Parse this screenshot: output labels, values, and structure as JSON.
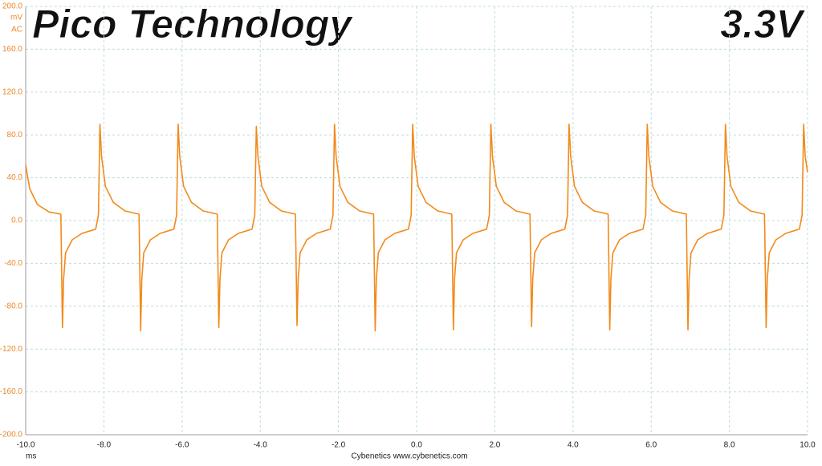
{
  "chart_data": {
    "type": "line",
    "title": "Pico Technology",
    "subtitle": "3.3V",
    "y_unit": "mV",
    "y_coupling": "AC",
    "x_unit": "ms",
    "footer": "Cybenetics  www.cybenetics.com",
    "grid": true,
    "xlim": [
      -10,
      10
    ],
    "ylim": [
      -200,
      200
    ],
    "xticks": [
      {
        "value": -10,
        "label": "-10.0"
      },
      {
        "value": -8,
        "label": "-8.0"
      },
      {
        "value": -6,
        "label": "-6.0"
      },
      {
        "value": -4,
        "label": "-4.0"
      },
      {
        "value": -2,
        "label": "-2.0"
      },
      {
        "value": 0,
        "label": "0.0"
      },
      {
        "value": 2,
        "label": "2.0"
      },
      {
        "value": 4,
        "label": "4.0"
      },
      {
        "value": 6,
        "label": "6.0"
      },
      {
        "value": 8,
        "label": "8.0"
      },
      {
        "value": 10,
        "label": "10.0"
      }
    ],
    "yticks": [
      {
        "value": 200,
        "label": "200.0"
      },
      {
        "value": 160,
        "label": "160.0"
      },
      {
        "value": 120,
        "label": "120.0"
      },
      {
        "value": 80,
        "label": "80.0"
      },
      {
        "value": 40,
        "label": "40.0"
      },
      {
        "value": 0,
        "label": "0.0"
      },
      {
        "value": -40,
        "label": "-40.0"
      },
      {
        "value": -80,
        "label": "-80.0"
      },
      {
        "value": -120,
        "label": "-120.0"
      },
      {
        "value": -160,
        "label": "-160.0"
      },
      {
        "value": -200,
        "label": "-200.0"
      }
    ],
    "x": [
      -10,
      -9.9,
      -9.7,
      -9.4,
      -9.1,
      -9.06,
      -9.03,
      -8.98,
      -8.81,
      -8.56,
      -8.21,
      -8.14,
      -8.1,
      -8.06,
      -7.96,
      -7.76,
      -7.46,
      -7.1,
      -7.06,
      -7.03,
      -6.98,
      -6.81,
      -6.56,
      -6.21,
      -6.14,
      -6.1,
      -6.06,
      -5.96,
      -5.76,
      -5.46,
      -5.1,
      -5.06,
      -5.03,
      -4.98,
      -4.81,
      -4.56,
      -4.21,
      -4.14,
      -4.1,
      -4.06,
      -3.96,
      -3.76,
      -3.46,
      -3.1,
      -3.06,
      -3.03,
      -2.98,
      -2.81,
      -2.56,
      -2.21,
      -2.14,
      -2.1,
      -2.06,
      -1.96,
      -1.76,
      -1.46,
      -1.1,
      -1.06,
      -1.03,
      -0.98,
      -0.81,
      -0.56,
      -0.21,
      -0.14,
      -0.1,
      -0.06,
      0.04,
      0.24,
      0.54,
      0.9,
      0.94,
      0.97,
      1.02,
      1.19,
      1.44,
      1.79,
      1.86,
      1.9,
      1.94,
      2.04,
      2.24,
      2.54,
      2.9,
      2.94,
      2.97,
      3.02,
      3.19,
      3.44,
      3.79,
      3.86,
      3.9,
      3.94,
      4.04,
      4.24,
      4.54,
      4.9,
      4.94,
      4.97,
      5.02,
      5.19,
      5.44,
      5.79,
      5.86,
      5.9,
      5.94,
      6.04,
      6.24,
      6.54,
      6.9,
      6.94,
      6.97,
      7.02,
      7.19,
      7.44,
      7.79,
      7.86,
      7.9,
      7.94,
      8.04,
      8.24,
      8.54,
      8.9,
      8.94,
      8.97,
      9.02,
      9.19,
      9.44,
      9.79,
      9.86,
      9.9,
      9.94,
      10.0
    ],
    "series": [
      {
        "color": "#f28a1a",
        "values": [
          52,
          30,
          15,
          8,
          6,
          -100,
          -55,
          -30,
          -18,
          -12,
          -8,
          5,
          90,
          60,
          32,
          17,
          9,
          6,
          -103,
          -55,
          -30,
          -18,
          -12,
          -8,
          5,
          90,
          60,
          32,
          17,
          9,
          6,
          -100,
          -55,
          -30,
          -18,
          -12,
          -8,
          5,
          88,
          60,
          32,
          17,
          9,
          6,
          -98,
          -55,
          -30,
          -18,
          -12,
          -8,
          5,
          90,
          60,
          32,
          17,
          9,
          6,
          -103,
          -55,
          -30,
          -18,
          -12,
          -8,
          5,
          90,
          60,
          32,
          17,
          9,
          6,
          -102,
          -55,
          -30,
          -18,
          -12,
          -8,
          5,
          90,
          60,
          32,
          17,
          9,
          6,
          -99,
          -55,
          -30,
          -18,
          -12,
          -8,
          5,
          90,
          60,
          32,
          17,
          9,
          6,
          -102,
          -55,
          -30,
          -18,
          -12,
          -8,
          5,
          90,
          60,
          32,
          17,
          9,
          6,
          -102,
          -55,
          -30,
          -18,
          -12,
          -8,
          5,
          90,
          60,
          32,
          17,
          9,
          6,
          -100,
          -55,
          -30,
          -18,
          -12,
          -8,
          5,
          90,
          60,
          45
        ]
      }
    ]
  }
}
